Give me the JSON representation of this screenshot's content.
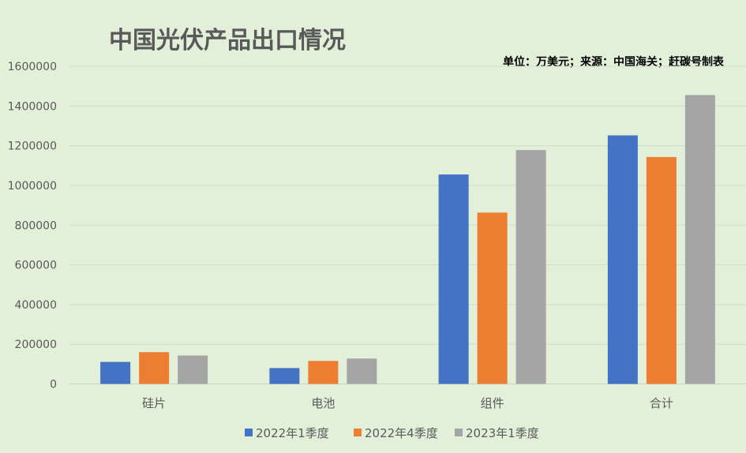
{
  "chart_data": {
    "type": "bar",
    "title": "中国光伏产品出口情况",
    "annotation": "单位：万美元；来源：中国海关；赶碳号制表",
    "categories": [
      "硅片",
      "电池",
      "组件",
      "合计"
    ],
    "series": [
      {
        "name": "2022年1季度",
        "color": "#4472c4",
        "values": [
          111000,
          80000,
          1055000,
          1252000
        ]
      },
      {
        "name": "2022年4季度",
        "color": "#ed7d31",
        "values": [
          160000,
          116000,
          863000,
          1143000
        ]
      },
      {
        "name": "2023年1季度",
        "color": "#a5a5a5",
        "values": [
          143000,
          128000,
          1178000,
          1455000
        ]
      }
    ],
    "ylim": [
      0,
      1600000
    ],
    "yticks": [
      "0",
      "200000",
      "400000",
      "600000",
      "800000",
      "1000000",
      "1200000",
      "1400000",
      "1600000"
    ],
    "grid": true,
    "legend": "bottom"
  }
}
